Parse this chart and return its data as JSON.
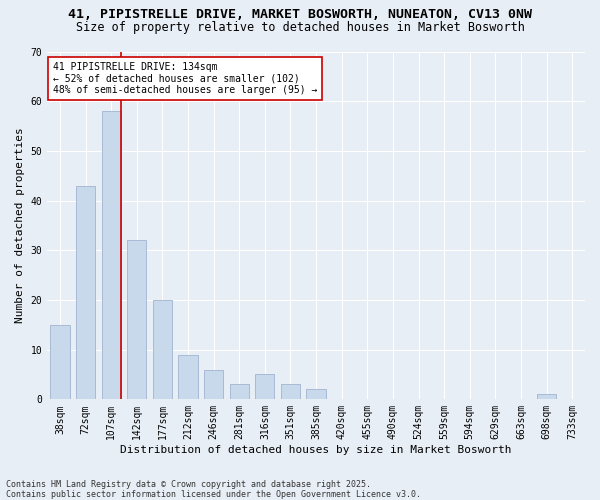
{
  "title": "41, PIPISTRELLE DRIVE, MARKET BOSWORTH, NUNEATON, CV13 0NW",
  "subtitle": "Size of property relative to detached houses in Market Bosworth",
  "xlabel": "Distribution of detached houses by size in Market Bosworth",
  "ylabel": "Number of detached properties",
  "bar_labels": [
    "38sqm",
    "72sqm",
    "107sqm",
    "142sqm",
    "177sqm",
    "212sqm",
    "246sqm",
    "281sqm",
    "316sqm",
    "351sqm",
    "385sqm",
    "420sqm",
    "455sqm",
    "490sqm",
    "524sqm",
    "559sqm",
    "594sqm",
    "629sqm",
    "663sqm",
    "698sqm",
    "733sqm"
  ],
  "bar_values": [
    15,
    43,
    58,
    32,
    20,
    9,
    6,
    3,
    5,
    3,
    2,
    0,
    0,
    0,
    0,
    0,
    0,
    0,
    0,
    1,
    0
  ],
  "bar_color": "#c9d9ec",
  "bar_edgecolor": "#a0b4d0",
  "marker_label": "41 PIPISTRELLE DRIVE: 134sqm\n← 52% of detached houses are smaller (102)\n48% of semi-detached houses are larger (95) →",
  "annotation_box_color": "#ffffff",
  "annotation_box_edgecolor": "#cc0000",
  "vline_color": "#cc0000",
  "vline_x_index": 2,
  "ylim": [
    0,
    70
  ],
  "yticks": [
    0,
    10,
    20,
    30,
    40,
    50,
    60,
    70
  ],
  "background_color": "#e8eef5",
  "grid_color": "#ffffff",
  "footer": "Contains HM Land Registry data © Crown copyright and database right 2025.\nContains public sector information licensed under the Open Government Licence v3.0.",
  "title_fontsize": 9.5,
  "subtitle_fontsize": 8.5,
  "tick_fontsize": 7,
  "ylabel_fontsize": 8,
  "xlabel_fontsize": 8,
  "annotation_fontsize": 7,
  "footer_fontsize": 6
}
